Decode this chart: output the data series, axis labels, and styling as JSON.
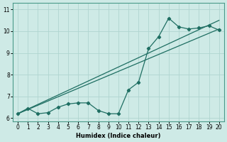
{
  "xlabel": "Humidex (Indice chaleur)",
  "background_color": "#ceeae6",
  "grid_color": "#b0d5d0",
  "line_color": "#1e6e62",
  "xlim": [
    -0.5,
    20.5
  ],
  "ylim": [
    5.85,
    11.3
  ],
  "xticks": [
    0,
    1,
    2,
    3,
    4,
    5,
    6,
    7,
    8,
    9,
    10,
    11,
    12,
    13,
    14,
    15,
    16,
    17,
    18,
    19,
    20
  ],
  "yticks": [
    6,
    7,
    8,
    9,
    10,
    11
  ],
  "data_x": [
    0,
    1,
    2,
    3,
    4,
    5,
    6,
    7,
    8,
    9,
    10,
    11,
    12,
    13,
    14,
    15,
    16,
    17,
    18,
    19,
    20
  ],
  "data_y": [
    6.2,
    6.45,
    6.2,
    6.25,
    6.5,
    6.65,
    6.7,
    6.7,
    6.35,
    6.2,
    6.2,
    7.3,
    7.65,
    9.2,
    9.75,
    10.6,
    10.2,
    10.1,
    10.15,
    10.25,
    10.05
  ],
  "line2_x0": 0,
  "line2_y0": 6.2,
  "line2_x1": 20,
  "line2_y1": 10.5,
  "line3_x0": 0,
  "line3_y0": 6.2,
  "line3_x1": 20,
  "line3_y1": 10.1
}
